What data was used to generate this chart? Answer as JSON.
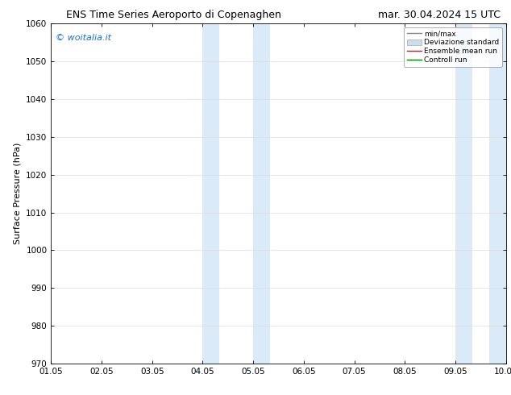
{
  "title_left": "ENS Time Series Aeroporto di Copenaghen",
  "title_right": "mar. 30.04.2024 15 UTC",
  "ylabel": "Surface Pressure (hPa)",
  "ylim": [
    970,
    1060
  ],
  "yticks": [
    970,
    980,
    990,
    1000,
    1010,
    1020,
    1030,
    1040,
    1050,
    1060
  ],
  "xtick_labels": [
    "01.05",
    "02.05",
    "03.05",
    "04.05",
    "05.05",
    "06.05",
    "07.05",
    "08.05",
    "09.05",
    "10.05"
  ],
  "xlim": [
    0,
    9
  ],
  "background_color": "#ffffff",
  "plot_bg_color": "#ffffff",
  "shaded_regions": [
    {
      "xmin": 3.0,
      "xmax": 3.33,
      "color": "#daeaf8"
    },
    {
      "xmin": 4.0,
      "xmax": 4.33,
      "color": "#daeaf8"
    },
    {
      "xmin": 8.0,
      "xmax": 8.33,
      "color": "#daeaf8"
    },
    {
      "xmin": 8.67,
      "xmax": 9.0,
      "color": "#daeaf8"
    }
  ],
  "watermark_text": "© woitalia.it",
  "watermark_color": "#1a6fc4",
  "legend_labels": [
    "min/max",
    "Deviazione standard",
    "Ensemble mean run",
    "Controll run"
  ],
  "legend_line_colors": [
    "#888888",
    "#bbbbbb",
    "#ff0000",
    "#007700"
  ],
  "legend_patch_color": "#ccddee",
  "title_fontsize": 9,
  "tick_fontsize": 7.5,
  "ylabel_fontsize": 8,
  "watermark_fontsize": 8,
  "grid_color": "#dddddd",
  "spine_color": "#000000"
}
